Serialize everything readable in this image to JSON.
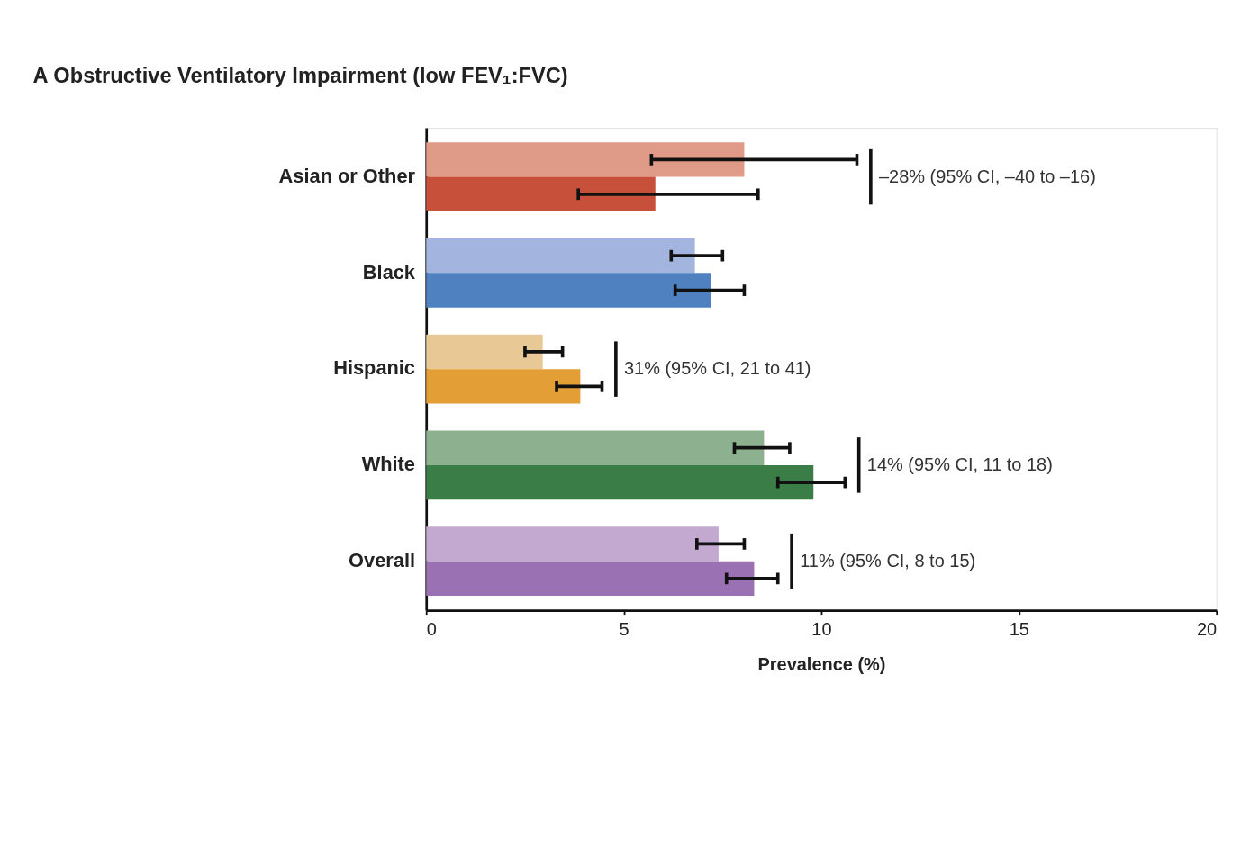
{
  "chart_data": {
    "type": "bar",
    "orientation": "horizontal",
    "title": "A  Obstructive Ventilatory Impairment (low FEV₁:FVC)",
    "xlabel": "Prevalence (%)",
    "categories": [
      "Asian or Other",
      "Black",
      "Hispanic",
      "White",
      "Overall"
    ],
    "series": [
      {
        "colors": [
          "#e09a88",
          "#a3b4de",
          "#e8c895",
          "#8db08f",
          "#c3a9d0"
        ],
        "values": [
          8.05,
          6.8,
          2.95,
          8.55,
          7.4
        ],
        "errors": [
          [
            5.7,
            10.9
          ],
          [
            6.2,
            7.5
          ],
          [
            2.5,
            3.45
          ],
          [
            7.8,
            9.2
          ],
          [
            6.85,
            8.05
          ]
        ]
      },
      {
        "colors": [
          "#c65039",
          "#4f81c0",
          "#e39e35",
          "#3a7d47",
          "#9a72b3"
        ],
        "values": [
          5.8,
          7.2,
          3.9,
          9.8,
          8.3
        ],
        "errors": [
          [
            3.85,
            8.4
          ],
          [
            6.3,
            8.05
          ],
          [
            3.3,
            4.45
          ],
          [
            8.9,
            10.6
          ],
          [
            7.6,
            8.9
          ]
        ]
      }
    ],
    "xlim": [
      0,
      20
    ],
    "xticks": [
      0,
      5,
      10,
      15,
      20
    ],
    "grid": false,
    "annotations": [
      "–28% (95% CI, –40 to –16)",
      "31% (95% CI, 21 to 41)",
      "14% (95% CI, 11 to 18)",
      "11% (95% CI, 8 to 15)"
    ]
  }
}
